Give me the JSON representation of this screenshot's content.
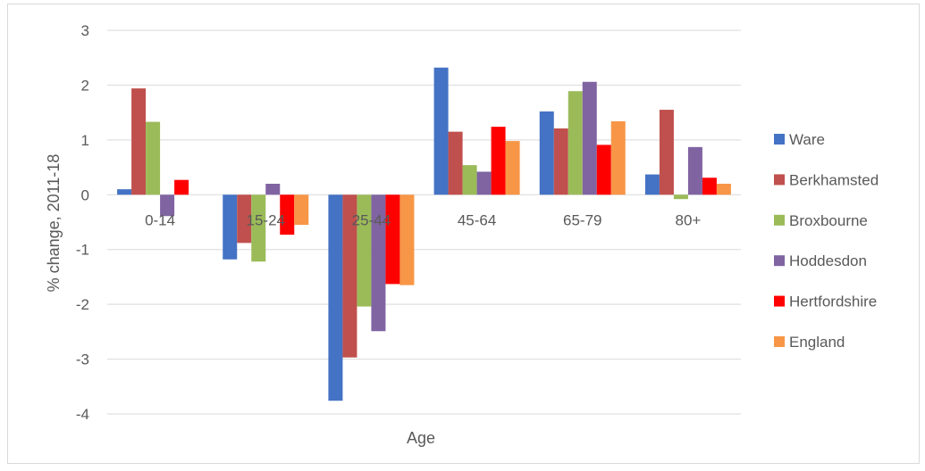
{
  "chart_data": {
    "type": "bar",
    "title": "",
    "xlabel": "Age",
    "ylabel": "% change, 2011-18",
    "ylim": [
      -4,
      3
    ],
    "yticks": [
      -4,
      -3,
      -2,
      -1,
      0,
      1,
      2,
      3
    ],
    "grid": true,
    "legend_position": "right",
    "categories": [
      "0-14",
      "15-24",
      "25-44",
      "45-64",
      "65-79",
      "80+"
    ],
    "series": [
      {
        "name": "Ware",
        "color": "#4472c4",
        "values": [
          0.1,
          -1.18,
          -3.76,
          2.32,
          1.52,
          0.37
        ]
      },
      {
        "name": "Berkhamsted",
        "color": "#c0504d",
        "values": [
          1.94,
          -0.88,
          -2.97,
          1.15,
          1.21,
          1.55
        ]
      },
      {
        "name": "Broxbourne",
        "color": "#9bbb59",
        "values": [
          1.33,
          -1.22,
          -2.04,
          0.54,
          1.89,
          -0.08
        ]
      },
      {
        "name": "Hoddesdon",
        "color": "#8064a2",
        "values": [
          -0.39,
          0.2,
          -2.49,
          0.42,
          2.06,
          0.87
        ]
      },
      {
        "name": "Hertfordshire",
        "color": "#ff0000",
        "values": [
          0.27,
          -0.73,
          -1.63,
          1.24,
          0.91,
          0.31
        ]
      },
      {
        "name": "England",
        "color": "#f79646",
        "values": [
          0.0,
          -0.55,
          -1.65,
          0.98,
          1.34,
          0.2
        ]
      }
    ]
  }
}
